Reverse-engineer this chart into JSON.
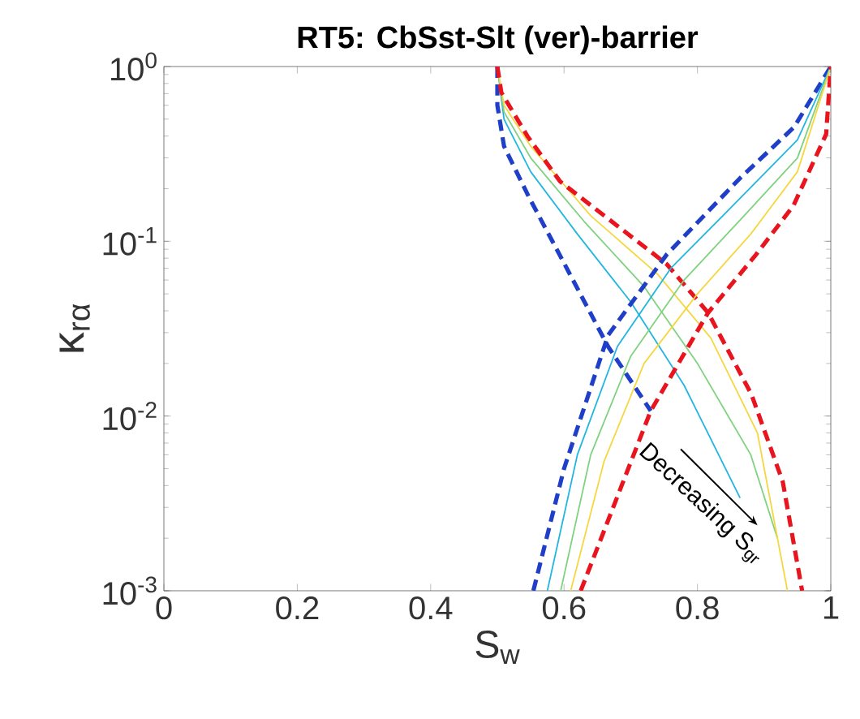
{
  "chart_data": {
    "type": "line",
    "title": "RT5: CbSst-Slt (ver)-barrier",
    "xlabel": "S$_{w}$",
    "ylabel": "κ$_{rα}$",
    "log": "y",
    "xlim": [
      0,
      1
    ],
    "ylim": [
      0.001,
      1
    ],
    "xticks": [
      0,
      0.2,
      0.4,
      0.6,
      0.8,
      1
    ],
    "yticks": [
      {
        "value": 0.001,
        "label": "10$^{-3}$"
      },
      {
        "value": 0.01,
        "label": "10$^{-2}$"
      },
      {
        "value": 0.1,
        "label": "10$^{-1}$"
      },
      {
        "value": 1,
        "label": "10$^{0}$"
      }
    ],
    "grid": false,
    "marker": "none",
    "annotations": [
      "Decreasing S$_{gr}$"
    ],
    "series": [
      {
        "color": "#1f3fc8",
        "line_style": "dashed",
        "x": [
          0.5,
          0.5,
          0.51,
          0.547,
          0.6,
          0.666,
          0.73
        ],
        "values": [
          1,
          0.6,
          0.35,
          0.18,
          0.075,
          0.025,
          0.0107
        ]
      },
      {
        "color": "#22b5e0",
        "line_style": "solid",
        "x": [
          0.5,
          0.51,
          0.55,
          0.62,
          0.7,
          0.78,
          0.864
        ],
        "values": [
          1,
          0.5,
          0.25,
          0.11,
          0.045,
          0.015,
          0.0034
        ]
      },
      {
        "color": "#7fd27f",
        "line_style": "solid",
        "x": [
          0.5,
          0.51,
          0.55,
          0.63,
          0.72,
          0.8,
          0.88,
          0.92
        ],
        "values": [
          1,
          0.55,
          0.3,
          0.13,
          0.055,
          0.02,
          0.006,
          0.002
        ]
      },
      {
        "color": "#f5d742",
        "line_style": "solid",
        "x": [
          0.5,
          0.51,
          0.55,
          0.64,
          0.74,
          0.82,
          0.89,
          0.935
        ],
        "values": [
          1,
          0.6,
          0.35,
          0.14,
          0.065,
          0.028,
          0.008,
          0.001
        ]
      },
      {
        "color": "#e8141e",
        "line_style": "dashed",
        "x": [
          0.5,
          0.506,
          0.545,
          0.594,
          0.683,
          0.754,
          0.816,
          0.881,
          0.928,
          0.957
        ],
        "values": [
          1,
          0.71,
          0.4,
          0.22,
          0.12,
          0.074,
          0.039,
          0.0133,
          0.0042,
          0.001
        ]
      },
      {
        "color": "#1f3fc8",
        "line_style": "dashed",
        "x": [
          0.554,
          0.6,
          0.666,
          0.754,
          0.864,
          0.945,
          1
        ],
        "values": [
          0.001,
          0.005,
          0.029,
          0.084,
          0.23,
          0.45,
          1
        ]
      },
      {
        "color": "#22b5e0",
        "line_style": "solid",
        "x": [
          0.575,
          0.62,
          0.68,
          0.76,
          0.86,
          0.95,
          1
        ],
        "values": [
          0.001,
          0.006,
          0.025,
          0.07,
          0.17,
          0.38,
          1
        ]
      },
      {
        "color": "#7fd27f",
        "line_style": "solid",
        "x": [
          0.595,
          0.64,
          0.7,
          0.78,
          0.87,
          0.95,
          1
        ],
        "values": [
          0.001,
          0.006,
          0.022,
          0.06,
          0.14,
          0.3,
          1
        ]
      },
      {
        "color": "#f5d742",
        "line_style": "solid",
        "x": [
          0.61,
          0.66,
          0.72,
          0.8,
          0.88,
          0.95,
          1
        ],
        "values": [
          0.001,
          0.0055,
          0.02,
          0.05,
          0.11,
          0.25,
          1
        ]
      },
      {
        "color": "#e8141e",
        "line_style": "dashed",
        "x": [
          0.625,
          0.73,
          0.816,
          0.888,
          0.944,
          0.993,
          1
        ],
        "values": [
          0.001,
          0.0107,
          0.039,
          0.084,
          0.16,
          0.41,
          1
        ]
      }
    ]
  }
}
